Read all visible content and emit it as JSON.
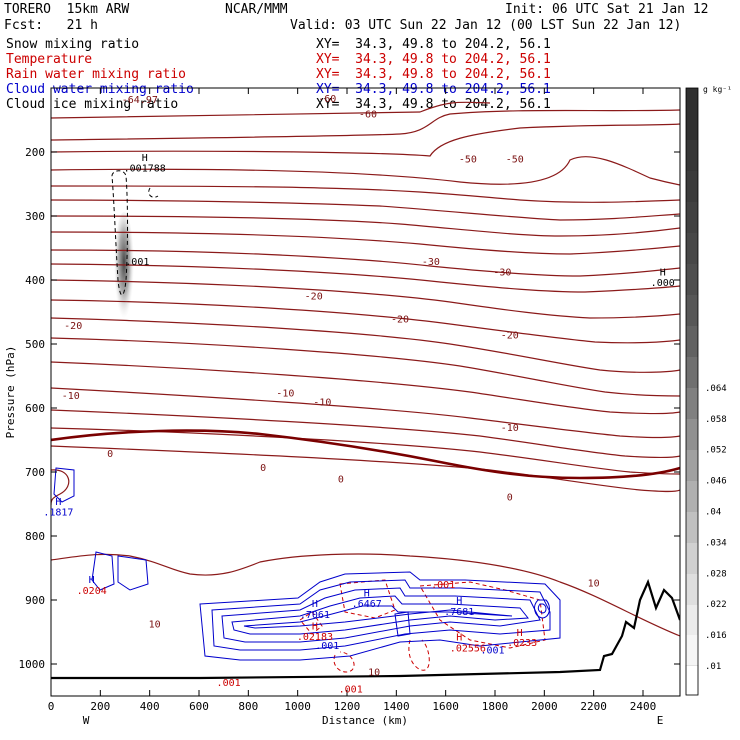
{
  "header": {
    "model": "TORERO  15km ARW",
    "center": "NCAR/MMM",
    "init": "Init: 06 UTC Sat 21 Jan 12",
    "fcst": "Fcst:   21 h",
    "valid": "Valid: 03 UTC Sun 22 Jan 12 (00 LST Sun 22 Jan 12)"
  },
  "fields": [
    {
      "name": "Snow mixing ratio",
      "xy": "XY=  34.3, 49.8 to 204.2, 56.1",
      "color": "#000000"
    },
    {
      "name": "Temperature",
      "xy": "XY=  34.3, 49.8 to 204.2, 56.1",
      "color": "#cc0000"
    },
    {
      "name": "Rain water mixing ratio",
      "xy": "XY=  34.3, 49.8 to 204.2, 56.1",
      "color": "#cc0000"
    },
    {
      "name": "Cloud water mixing ratio",
      "xy": "XY=  34.3, 49.8 to 204.2, 56.1",
      "color": "#0000cc"
    },
    {
      "name": "Cloud ice mixing ratio",
      "xy": "XY=  34.3, 49.8 to 204.2, 56.1",
      "color": "#000000"
    }
  ],
  "chart_data": {
    "type": "cross-section contour",
    "xlabel": "Distance (km)",
    "ylabel": "Pressure (hPa)",
    "xlim": [
      0,
      2550
    ],
    "ylim": [
      1050,
      100
    ],
    "x_ticks": [
      0,
      200,
      400,
      600,
      800,
      1000,
      1200,
      1400,
      1600,
      1800,
      2000,
      2200,
      2400
    ],
    "y_ticks": [
      200,
      300,
      400,
      500,
      600,
      700,
      800,
      900,
      1000
    ],
    "x_ends": {
      "left": "W",
      "right": "E"
    },
    "colorbar": {
      "unit": "g kg⁻¹",
      "ticks": [
        ".01",
        ".016",
        ".022",
        ".028",
        ".034",
        ".04",
        ".046",
        ".052",
        ".058",
        ".064"
      ]
    },
    "temperature_contours": [
      {
        "label": "-60",
        "pressure": 138
      },
      {
        "label": "-50",
        "pressure": 233
      },
      {
        "label": "-40",
        "pressure": 333
      },
      {
        "label": "-30",
        "pressure": 403
      },
      {
        "label": "-20",
        "pressure": 474
      },
      {
        "label": "-10",
        "pressure": 560
      },
      {
        "label": "0",
        "pressure": 697
      }
    ],
    "annotations": [
      {
        "text": "-64.97",
        "x": 360,
        "y": 117,
        "color": "#7a1010"
      },
      {
        "text": "-60",
        "x": 1285,
        "y": 140,
        "color": "#7a1010"
      },
      {
        "text": "-60",
        "x": 1120,
        "y": 116,
        "color": "#7a1010"
      },
      {
        "text": "-50",
        "x": 1690,
        "y": 210,
        "color": "#7a1010"
      },
      {
        "text": "-50",
        "x": 1880,
        "y": 210,
        "color": "#7a1010"
      },
      {
        "text": "-30",
        "x": 1540,
        "y": 370,
        "color": "#7a1010"
      },
      {
        "text": "-30",
        "x": 1830,
        "y": 387,
        "color": "#7a1010"
      },
      {
        "text": "-20",
        "x": 90,
        "y": 470,
        "color": "#7a1010"
      },
      {
        "text": "-20",
        "x": 1065,
        "y": 424,
        "color": "#7a1010"
      },
      {
        "text": "-20",
        "x": 1415,
        "y": 460,
        "color": "#7a1010"
      },
      {
        "text": "-20",
        "x": 1860,
        "y": 485,
        "color": "#7a1010"
      },
      {
        "text": "-10",
        "x": 80,
        "y": 580,
        "color": "#7a1010"
      },
      {
        "text": "-10",
        "x": 950,
        "y": 576,
        "color": "#7a1010"
      },
      {
        "text": "-10",
        "x": 1100,
        "y": 590,
        "color": "#7a1010"
      },
      {
        "text": "-10",
        "x": 1860,
        "y": 630,
        "color": "#7a1010"
      },
      {
        "text": "0",
        "x": 240,
        "y": 670,
        "color": "#7a1010"
      },
      {
        "text": "0",
        "x": 860,
        "y": 692,
        "color": "#7a1010"
      },
      {
        "text": "0",
        "x": 1175,
        "y": 710,
        "color": "#7a1010"
      },
      {
        "text": "0",
        "x": 1860,
        "y": 738,
        "color": "#7a1010"
      },
      {
        "text": "10",
        "x": 420,
        "y": 937,
        "color": "#7a1010"
      },
      {
        "text": "10",
        "x": 1310,
        "y": 1012,
        "color": "#7a1010"
      },
      {
        "text": "10",
        "x": 2200,
        "y": 873,
        "color": "#7a1010"
      },
      {
        "text": "H",
        "x": 380,
        "y": 208,
        "color": "#000000"
      },
      {
        "text": ".001788",
        "x": 380,
        "y": 224,
        "color": "#000000"
      },
      {
        "text": ".001",
        "x": 350,
        "y": 370,
        "color": "#000000"
      },
      {
        "text": "H",
        "x": 2480,
        "y": 387,
        "color": "#000000"
      },
      {
        "text": ".000",
        "x": 2480,
        "y": 403,
        "color": "#000000"
      },
      {
        "text": "H",
        "x": 30,
        "y": 745,
        "color": "#0000cc"
      },
      {
        "text": ".1817",
        "x": 30,
        "y": 762,
        "color": "#0000cc"
      },
      {
        "text": "H",
        "x": 165,
        "y": 867,
        "color": "#0000cc"
      },
      {
        "text": ".0204",
        "x": 165,
        "y": 884,
        "color": "#cc0000"
      },
      {
        "text": "H",
        "x": 1280,
        "y": 888,
        "color": "#0000cc"
      },
      {
        "text": ".6467",
        "x": 1280,
        "y": 905,
        "color": "#0000cc"
      },
      {
        "text": "H",
        "x": 1070,
        "y": 905,
        "color": "#0000cc"
      },
      {
        "text": ".7061",
        "x": 1070,
        "y": 922,
        "color": "#0000cc"
      },
      {
        "text": "H",
        "x": 1655,
        "y": 900,
        "color": "#0000cc"
      },
      {
        "text": ".7681",
        "x": 1655,
        "y": 917,
        "color": "#0000cc"
      },
      {
        "text": "H",
        "x": 1070,
        "y": 940,
        "color": "#cc0000"
      },
      {
        "text": ".02183",
        "x": 1070,
        "y": 956,
        "color": "#cc0000"
      },
      {
        "text": ".001",
        "x": 1120,
        "y": 970,
        "color": "#0000cc"
      },
      {
        "text": ".001",
        "x": 1590,
        "y": 875,
        "color": "#cc0000"
      },
      {
        "text": "H",
        "x": 1655,
        "y": 957,
        "color": "#cc0000"
      },
      {
        "text": ".02556",
        "x": 1690,
        "y": 974,
        "color": "#cc0000"
      },
      {
        "text": ".001",
        "x": 1790,
        "y": 977,
        "color": "#0000cc"
      },
      {
        "text": "H",
        "x": 1900,
        "y": 950,
        "color": "#cc0000"
      },
      {
        "text": ".0233",
        "x": 1910,
        "y": 966,
        "color": "#cc0000"
      },
      {
        "text": ".001",
        "x": 720,
        "y": 1028,
        "color": "#cc0000"
      },
      {
        "text": ".001",
        "x": 1215,
        "y": 1038,
        "color": "#cc0000"
      }
    ]
  }
}
